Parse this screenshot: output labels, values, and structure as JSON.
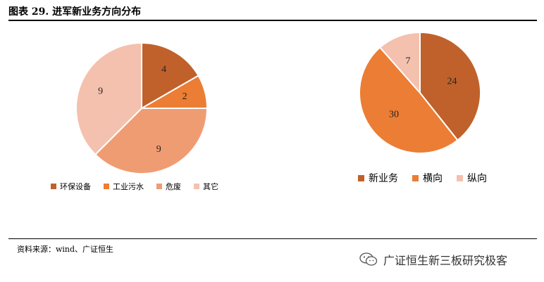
{
  "header": {
    "title": "图表 29. 进军新业务方向分布"
  },
  "source": {
    "text": "资料来源：wind、广证恒生"
  },
  "watermark": {
    "text": "广证恒生新三板研究极客"
  },
  "colors": [
    "#C0612B",
    "#EC7D34",
    "#F09C73",
    "#F4C1AE"
  ],
  "chart_data": [
    {
      "type": "pie",
      "categories": [
        "环保设备",
        "工业污水",
        "危废",
        "其它"
      ],
      "values": [
        4,
        2,
        9,
        9
      ],
      "colors": [
        "#C0612B",
        "#EC7D34",
        "#F09C73",
        "#F4C1AE"
      ],
      "title": "",
      "legend": "bottom"
    },
    {
      "type": "pie",
      "categories": [
        "新业务",
        "横向",
        "纵向"
      ],
      "values": [
        24,
        30,
        7
      ],
      "colors": [
        "#C0612B",
        "#EC7D34",
        "#F4C1AE"
      ],
      "title": "",
      "legend": "bottom"
    }
  ]
}
